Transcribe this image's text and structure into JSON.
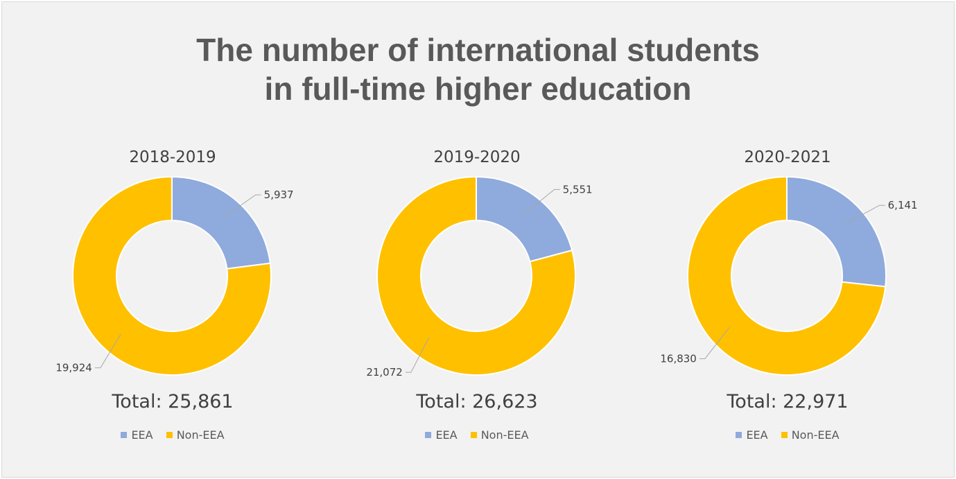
{
  "title_lines": [
    "The number of international students",
    "in full-time higher education"
  ],
  "colors": {
    "EEA": "#8faadc",
    "Non-EEA": "#ffc000"
  },
  "chart_data": [
    {
      "type": "pie",
      "title": "2018-2019",
      "total_label": "Total: 25,861",
      "categories": [
        "EEA",
        "Non-EEA"
      ],
      "values": [
        5937,
        19924
      ],
      "value_labels": [
        "5,937",
        "19,924"
      ],
      "legend": [
        "EEA",
        "Non-EEA"
      ],
      "legend_position": "bottom"
    },
    {
      "type": "pie",
      "title": "2019-2020",
      "total_label": "Total: 26,623",
      "categories": [
        "EEA",
        "Non-EEA"
      ],
      "values": [
        5551,
        21072
      ],
      "value_labels": [
        "5,551",
        "21,072"
      ],
      "legend": [
        "EEA",
        "Non-EEA"
      ],
      "legend_position": "bottom"
    },
    {
      "type": "pie",
      "title": "2020-2021",
      "total_label": "Total: 22,971",
      "categories": [
        "EEA",
        "Non-EEA"
      ],
      "values": [
        6141,
        16830
      ],
      "value_labels": [
        "6,141",
        "16,830"
      ],
      "legend": [
        "EEA",
        "Non-EEA"
      ],
      "legend_position": "bottom"
    }
  ]
}
